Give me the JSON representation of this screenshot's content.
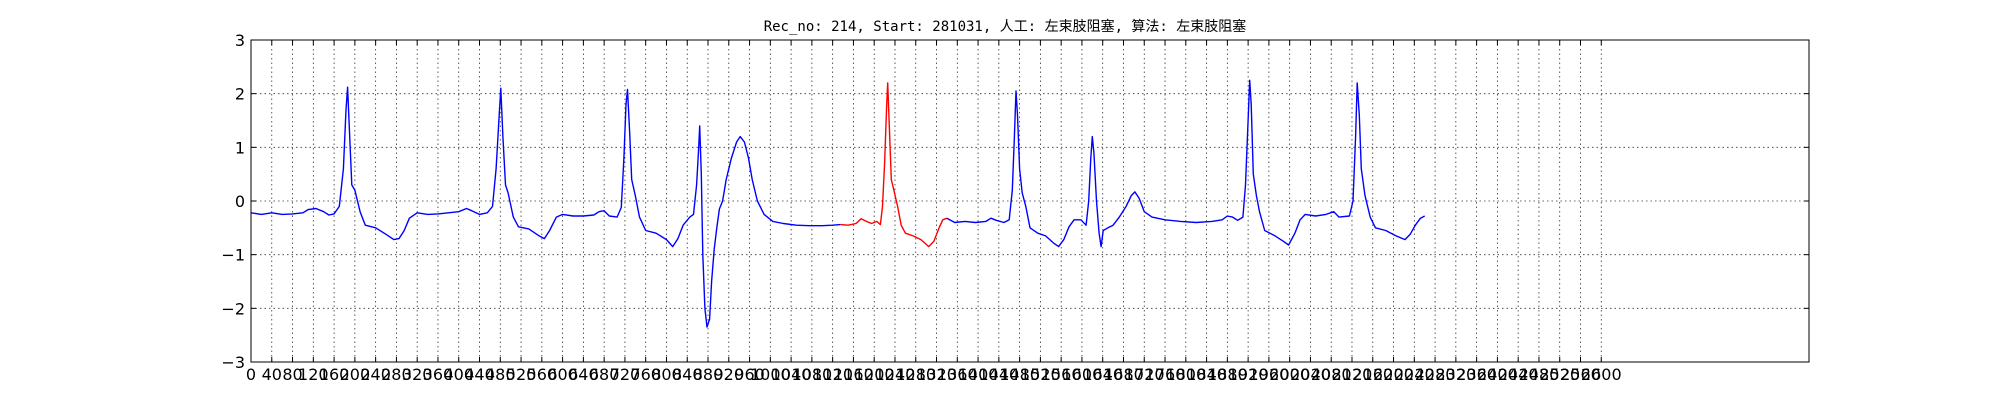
{
  "chart_data": {
    "type": "line",
    "title": "Rec_no: 214, Start: 281031, 人工: 左束肢阻塞, 算法: 左束肢阻塞",
    "xlabel": "",
    "ylabel": "",
    "xlim": [
      0,
      3000
    ],
    "ylim": [
      -3,
      3
    ],
    "grid": true,
    "ytick_labels": [
      "−3",
      "−2",
      "−1",
      "0",
      "1",
      "2",
      "3"
    ],
    "xtick_labels": [
      "0",
      "40",
      "80",
      "120",
      "160",
      "200",
      "240",
      "280",
      "320",
      "360",
      "400",
      "440",
      "480",
      "520",
      "560",
      "600",
      "640",
      "680",
      "720",
      "760",
      "800",
      "840",
      "880",
      "920",
      "960",
      "1000",
      "1040",
      "1080",
      "1120",
      "1160",
      "1200",
      "1240",
      "1280",
      "1320",
      "1360",
      "1400",
      "1440",
      "1480",
      "1520",
      "1560",
      "1600",
      "1640",
      "1680",
      "1720",
      "1760",
      "1800",
      "1840",
      "1880",
      "1920",
      "1960",
      "2000",
      "2040",
      "2080",
      "2120",
      "2160",
      "2200",
      "2240",
      "2280",
      "2320",
      "2360",
      "2400",
      "2440",
      "2480",
      "2520",
      "2560",
      "2600"
    ],
    "colors": {
      "normal": "#0000ff",
      "highlight": "#ff0000"
    },
    "series": [
      {
        "color": "#0000ff",
        "points": [
          [
            0,
            -0.22
          ],
          [
            20,
            -0.25
          ],
          [
            40,
            -0.22
          ],
          [
            60,
            -0.25
          ],
          [
            80,
            -0.24
          ],
          [
            100,
            -0.22
          ],
          [
            110,
            -0.16
          ],
          [
            125,
            -0.14
          ],
          [
            140,
            -0.2
          ],
          [
            150,
            -0.26
          ],
          [
            160,
            -0.24
          ],
          [
            170,
            -0.1
          ],
          [
            178,
            0.6
          ],
          [
            183,
            1.7
          ],
          [
            186,
            2.12
          ],
          [
            190,
            1.2
          ],
          [
            194,
            0.3
          ],
          [
            200,
            0.2
          ],
          [
            210,
            -0.2
          ],
          [
            220,
            -0.45
          ],
          [
            240,
            -0.5
          ],
          [
            260,
            -0.62
          ],
          [
            275,
            -0.72
          ],
          [
            285,
            -0.7
          ],
          [
            295,
            -0.55
          ],
          [
            305,
            -0.32
          ],
          [
            320,
            -0.22
          ],
          [
            340,
            -0.25
          ],
          [
            360,
            -0.24
          ],
          [
            380,
            -0.22
          ],
          [
            400,
            -0.2
          ],
          [
            415,
            -0.14
          ],
          [
            425,
            -0.18
          ],
          [
            440,
            -0.25
          ],
          [
            455,
            -0.22
          ],
          [
            465,
            -0.1
          ],
          [
            472,
            0.6
          ],
          [
            478,
            1.6
          ],
          [
            481,
            2.1
          ],
          [
            485,
            1.2
          ],
          [
            490,
            0.3
          ],
          [
            495,
            0.15
          ],
          [
            505,
            -0.3
          ],
          [
            515,
            -0.48
          ],
          [
            535,
            -0.52
          ],
          [
            555,
            -0.65
          ],
          [
            565,
            -0.7
          ],
          [
            575,
            -0.55
          ],
          [
            588,
            -0.3
          ],
          [
            600,
            -0.25
          ],
          [
            620,
            -0.28
          ],
          [
            640,
            -0.28
          ],
          [
            660,
            -0.26
          ],
          [
            670,
            -0.2
          ],
          [
            680,
            -0.18
          ],
          [
            690,
            -0.28
          ],
          [
            705,
            -0.3
          ],
          [
            713,
            -0.12
          ],
          [
            718,
            0.8
          ],
          [
            722,
            1.8
          ],
          [
            725,
            2.08
          ],
          [
            729,
            1.3
          ],
          [
            733,
            0.4
          ],
          [
            740,
            0.1
          ],
          [
            748,
            -0.3
          ],
          [
            760,
            -0.55
          ],
          [
            780,
            -0.6
          ],
          [
            800,
            -0.72
          ],
          [
            812,
            -0.85
          ],
          [
            822,
            -0.7
          ],
          [
            832,
            -0.45
          ],
          [
            845,
            -0.3
          ],
          [
            852,
            -0.25
          ],
          [
            858,
            0.3
          ],
          [
            862,
            1.0
          ],
          [
            864,
            1.4
          ],
          [
            867,
            0.5
          ],
          [
            870,
            -1.0
          ],
          [
            874,
            -2.0
          ],
          [
            878,
            -2.35
          ],
          [
            883,
            -2.2
          ],
          [
            887,
            -1.5
          ],
          [
            892,
            -0.9
          ],
          [
            897,
            -0.5
          ],
          [
            902,
            -0.15
          ],
          [
            908,
            0.0
          ],
          [
            915,
            0.4
          ],
          [
            925,
            0.8
          ],
          [
            935,
            1.1
          ],
          [
            942,
            1.2
          ],
          [
            950,
            1.1
          ],
          [
            958,
            0.8
          ],
          [
            965,
            0.4
          ],
          [
            975,
            0.0
          ],
          [
            988,
            -0.25
          ],
          [
            1005,
            -0.38
          ],
          [
            1025,
            -0.42
          ],
          [
            1050,
            -0.45
          ],
          [
            1075,
            -0.46
          ],
          [
            1100,
            -0.46
          ],
          [
            1120,
            -0.45
          ],
          [
            1135,
            -0.44
          ]
        ]
      },
      {
        "color": "#ff0000",
        "points": [
          [
            1135,
            -0.44
          ],
          [
            1150,
            -0.45
          ],
          [
            1165,
            -0.42
          ],
          [
            1175,
            -0.33
          ],
          [
            1185,
            -0.38
          ],
          [
            1195,
            -0.42
          ],
          [
            1205,
            -0.38
          ],
          [
            1212,
            -0.44
          ],
          [
            1216,
            -0.1
          ],
          [
            1220,
            0.7
          ],
          [
            1224,
            1.8
          ],
          [
            1226,
            2.2
          ],
          [
            1229,
            1.4
          ],
          [
            1233,
            0.4
          ],
          [
            1238,
            0.2
          ],
          [
            1245,
            -0.1
          ],
          [
            1252,
            -0.45
          ],
          [
            1260,
            -0.6
          ],
          [
            1275,
            -0.65
          ],
          [
            1290,
            -0.72
          ],
          [
            1305,
            -0.85
          ],
          [
            1315,
            -0.75
          ],
          [
            1325,
            -0.5
          ],
          [
            1332,
            -0.35
          ],
          [
            1340,
            -0.32
          ]
        ]
      },
      {
        "color": "#0000ff",
        "points": [
          [
            1340,
            -0.32
          ],
          [
            1355,
            -0.4
          ],
          [
            1375,
            -0.38
          ],
          [
            1395,
            -0.4
          ],
          [
            1415,
            -0.38
          ],
          [
            1425,
            -0.32
          ],
          [
            1435,
            -0.36
          ],
          [
            1450,
            -0.4
          ],
          [
            1460,
            -0.35
          ],
          [
            1466,
            0.2
          ],
          [
            1470,
            1.2
          ],
          [
            1473,
            2.05
          ],
          [
            1476,
            1.6
          ],
          [
            1480,
            0.6
          ],
          [
            1485,
            0.15
          ],
          [
            1492,
            -0.1
          ],
          [
            1500,
            -0.5
          ],
          [
            1515,
            -0.6
          ],
          [
            1530,
            -0.65
          ],
          [
            1545,
            -0.78
          ],
          [
            1555,
            -0.85
          ],
          [
            1565,
            -0.72
          ],
          [
            1575,
            -0.48
          ],
          [
            1585,
            -0.35
          ],
          [
            1598,
            -0.35
          ],
          [
            1608,
            -0.45
          ],
          [
            1613,
            0.0
          ],
          [
            1617,
            0.8
          ],
          [
            1620,
            1.2
          ],
          [
            1623,
            0.9
          ],
          [
            1628,
            0.0
          ],
          [
            1633,
            -0.6
          ],
          [
            1637,
            -0.85
          ],
          [
            1641,
            -0.55
          ],
          [
            1650,
            -0.5
          ],
          [
            1660,
            -0.45
          ],
          [
            1672,
            -0.3
          ],
          [
            1685,
            -0.1
          ],
          [
            1695,
            0.1
          ],
          [
            1702,
            0.17
          ],
          [
            1710,
            0.05
          ],
          [
            1720,
            -0.2
          ],
          [
            1735,
            -0.3
          ],
          [
            1760,
            -0.35
          ],
          [
            1790,
            -0.38
          ],
          [
            1820,
            -0.4
          ],
          [
            1850,
            -0.38
          ],
          [
            1870,
            -0.35
          ],
          [
            1880,
            -0.28
          ],
          [
            1890,
            -0.3
          ],
          [
            1900,
            -0.36
          ],
          [
            1910,
            -0.3
          ],
          [
            1915,
            0.3
          ],
          [
            1920,
            1.5
          ],
          [
            1923,
            2.25
          ],
          [
            1926,
            1.8
          ],
          [
            1930,
            0.5
          ],
          [
            1936,
            0.1
          ],
          [
            1942,
            -0.2
          ],
          [
            1952,
            -0.55
          ],
          [
            1972,
            -0.65
          ],
          [
            1988,
            -0.75
          ],
          [
            1998,
            -0.82
          ],
          [
            2010,
            -0.6
          ],
          [
            2020,
            -0.35
          ],
          [
            2030,
            -0.25
          ],
          [
            2050,
            -0.28
          ],
          [
            2070,
            -0.25
          ],
          [
            2085,
            -0.2
          ],
          [
            2095,
            -0.3
          ],
          [
            2115,
            -0.28
          ],
          [
            2122,
            0.0
          ],
          [
            2127,
            1.2
          ],
          [
            2130,
            2.2
          ],
          [
            2134,
            1.6
          ],
          [
            2138,
            0.6
          ],
          [
            2145,
            0.1
          ],
          [
            2155,
            -0.3
          ],
          [
            2165,
            -0.5
          ],
          [
            2185,
            -0.55
          ],
          [
            2205,
            -0.65
          ],
          [
            2222,
            -0.72
          ],
          [
            2232,
            -0.62
          ],
          [
            2242,
            -0.45
          ],
          [
            2252,
            -0.32
          ],
          [
            2260,
            -0.28
          ]
        ]
      }
    ]
  }
}
